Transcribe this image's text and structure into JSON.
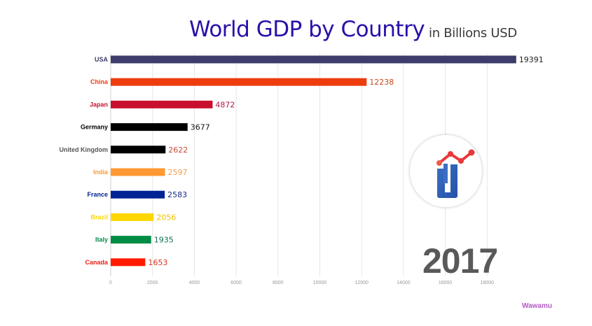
{
  "header": {
    "title": "World GDP by Country",
    "subtitle": "in Billions USD"
  },
  "year": "2017",
  "watermark": "Wawamu",
  "logo": {
    "icon": "bar-chart-trend-logo-icon",
    "colors": {
      "trend": "#e8383a",
      "body": "#2f5fb3"
    }
  },
  "chart_data": {
    "type": "bar",
    "orientation": "horizontal",
    "title": "World GDP by Country",
    "subtitle": "in Billions USD",
    "xlabel": "",
    "ylabel": "",
    "xlim": [
      0,
      19391
    ],
    "xticks": [
      0,
      2000,
      4000,
      6000,
      8000,
      10000,
      12000,
      14000,
      16000,
      18000
    ],
    "xtick_labels": [
      "0",
      "2000",
      "4000",
      "6000",
      "8000",
      "10000",
      "12000",
      "14000",
      "16000",
      "18000"
    ],
    "grid": true,
    "categories": [
      "USA",
      "China",
      "Japan",
      "Germany",
      "United Kingdom",
      "India",
      "France",
      "Brazil",
      "Italy",
      "Canada"
    ],
    "values": [
      19391,
      12238,
      4872,
      3677,
      2622,
      2597,
      2583,
      2056,
      1935,
      1653
    ],
    "value_labels": [
      "19391",
      "12238",
      "4872",
      "3677",
      "2622",
      "2597",
      "2583",
      "2056",
      "1935",
      "1653"
    ],
    "colors": [
      "#3d3d6b",
      "#ee3c0e",
      "#c8102e",
      "#000000",
      "#000000",
      "#ff9933",
      "#002395",
      "#fed700",
      "#008c45",
      "#ff1a00"
    ],
    "label_colors": [
      "#3d3d6b",
      "#ee3c0e",
      "#c8102e",
      "#000000",
      "#555555",
      "#ff9933",
      "#002395",
      "#fed700",
      "#008c45",
      "#e8201a"
    ],
    "value_label_colors": [
      "#222222",
      "#c84a20",
      "#b01840",
      "#111111",
      "#c84a3a",
      "#f0a050",
      "#1a2a80",
      "#f0c000",
      "#107050",
      "#d83020"
    ],
    "period": "2017"
  }
}
